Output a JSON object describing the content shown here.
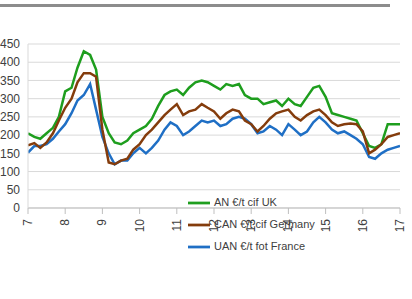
{
  "chart_data": {
    "type": "line",
    "x": [
      7,
      7.17,
      7.33,
      7.5,
      7.67,
      7.83,
      8,
      8.17,
      8.33,
      8.5,
      8.67,
      8.83,
      9,
      9.17,
      9.33,
      9.5,
      9.67,
      9.83,
      10,
      10.17,
      10.33,
      10.5,
      10.67,
      10.83,
      11,
      11.17,
      11.33,
      11.5,
      11.67,
      11.83,
      12,
      12.17,
      12.33,
      12.5,
      12.67,
      12.83,
      13,
      13.17,
      13.33,
      13.5,
      13.67,
      13.83,
      14,
      14.17,
      14.33,
      14.5,
      14.67,
      14.83,
      15,
      15.17,
      15.33,
      15.5,
      15.67,
      15.83,
      16,
      16.17,
      16.33,
      16.5,
      16.67,
      16.83,
      17
    ],
    "series": [
      {
        "name": "UAN €/t fot France",
        "color": "#1f6fc5",
        "values": [
          152,
          170,
          170,
          175,
          190,
          210,
          230,
          260,
          295,
          310,
          340,
          270,
          195,
          150,
          120,
          130,
          130,
          150,
          165,
          150,
          165,
          185,
          215,
          235,
          225,
          200,
          210,
          225,
          240,
          235,
          240,
          225,
          230,
          245,
          250,
          245,
          230,
          205,
          210,
          225,
          215,
          200,
          230,
          215,
          200,
          210,
          235,
          250,
          235,
          215,
          205,
          210,
          200,
          190,
          175,
          140,
          135,
          150,
          160,
          165,
          170
        ]
      },
      {
        "name": "AN €/t cif UK",
        "color": "#1e9e1e",
        "values": [
          205,
          195,
          190,
          205,
          220,
          250,
          320,
          330,
          385,
          430,
          420,
          380,
          250,
          205,
          180,
          175,
          185,
          205,
          215,
          225,
          245,
          280,
          310,
          320,
          325,
          310,
          330,
          345,
          350,
          345,
          335,
          325,
          340,
          335,
          340,
          310,
          300,
          300,
          285,
          290,
          295,
          280,
          300,
          285,
          280,
          305,
          330,
          335,
          305,
          260,
          255,
          250,
          245,
          240,
          205,
          170,
          165,
          175,
          230,
          230,
          230
        ]
      },
      {
        "name": "CAN €/t cif Germany",
        "color": "#843c0c",
        "values": [
          172,
          178,
          165,
          180,
          205,
          240,
          275,
          300,
          345,
          370,
          370,
          360,
          215,
          125,
          120,
          130,
          135,
          160,
          175,
          200,
          215,
          235,
          255,
          270,
          285,
          255,
          265,
          270,
          285,
          275,
          265,
          245,
          260,
          270,
          265,
          240,
          230,
          210,
          225,
          245,
          260,
          265,
          270,
          250,
          240,
          255,
          265,
          270,
          255,
          235,
          225,
          230,
          232,
          230,
          210,
          150,
          160,
          175,
          195,
          200,
          205
        ]
      }
    ],
    "xlim": [
      7,
      17
    ],
    "xticks": [
      7,
      8,
      9,
      10,
      11,
      12,
      13,
      14,
      15,
      16,
      17
    ],
    "ylim": [
      0,
      450
    ],
    "yticks": [
      0,
      50,
      100,
      150,
      200,
      250,
      300,
      350,
      400,
      450
    ],
    "grid": true,
    "legend": "lower right"
  }
}
